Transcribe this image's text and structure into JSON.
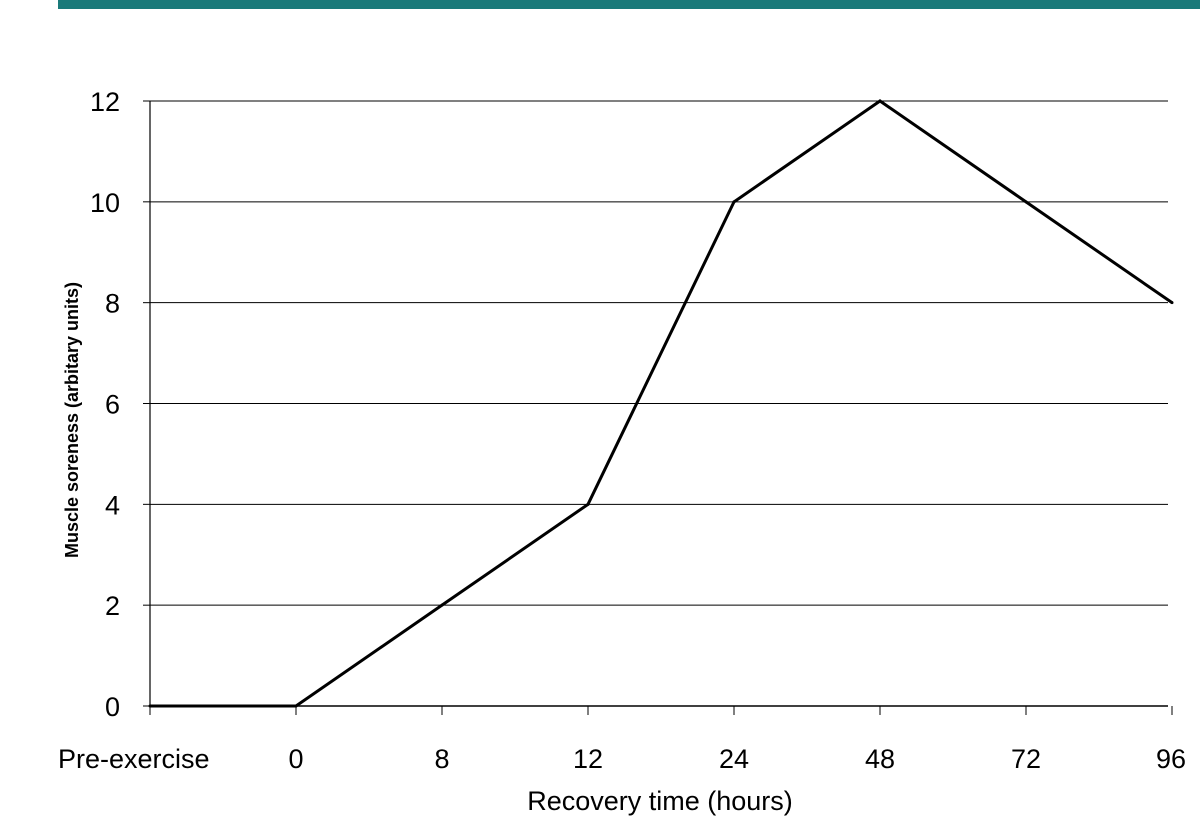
{
  "colors": {
    "top_bar": "#1a7a7a",
    "line": "#000000",
    "grid": "#000000"
  },
  "chart_data": {
    "type": "line",
    "title": "",
    "xlabel": "Recovery time (hours)",
    "ylabel": "Muscle soreness (arbitary units)",
    "categories": [
      "Pre-exercise",
      "0",
      "8",
      "12",
      "24",
      "48",
      "72",
      "96"
    ],
    "series": [
      {
        "values": [
          0,
          0,
          2,
          4,
          10,
          12,
          10,
          8
        ]
      }
    ],
    "ylim": [
      0,
      12
    ],
    "yticks": [
      0,
      2,
      4,
      6,
      8,
      10,
      12
    ],
    "grid": true,
    "legend": "none"
  }
}
